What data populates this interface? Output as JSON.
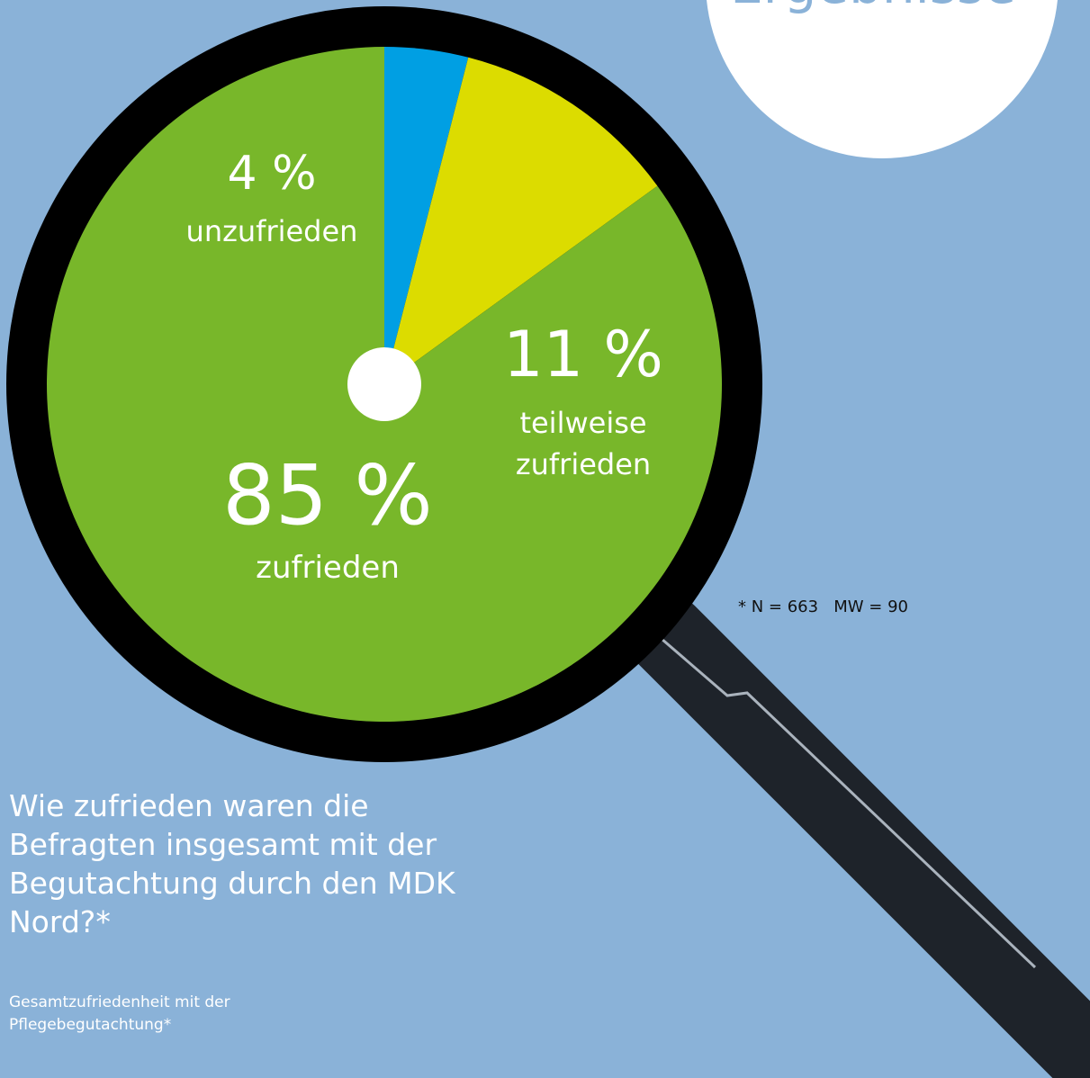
{
  "colors": {
    "background": "#8ab2d8",
    "satisfied": "#78b72a",
    "partly": "#dcdc00",
    "dissatisfied": "#009fe3",
    "lens_ring": "#000000",
    "handle": "#1e232a"
  },
  "badge": {
    "label": "Ergebnisse"
  },
  "question": "Wie zufrieden waren die Befragten insgesamt mit der Begutachtung durch den MDK Nord?*",
  "subtitle": "Gesamtzufriedenheit mit der Pflegebegutachtung*",
  "note": "* N = 663   MW = 90",
  "chart_data": {
    "type": "pie",
    "start": "12 o'clock",
    "direction": "clockwise",
    "slices": [
      {
        "label": "unzufrieden",
        "value": 4,
        "value_label": "4 %",
        "color": "#009fe3"
      },
      {
        "label": "teilweise zufrieden",
        "value": 11,
        "value_label": "11 %",
        "color": "#dcdc00"
      },
      {
        "label": "zufrieden",
        "value": 85,
        "value_label": "85 %",
        "color": "#78b72a"
      }
    ]
  }
}
